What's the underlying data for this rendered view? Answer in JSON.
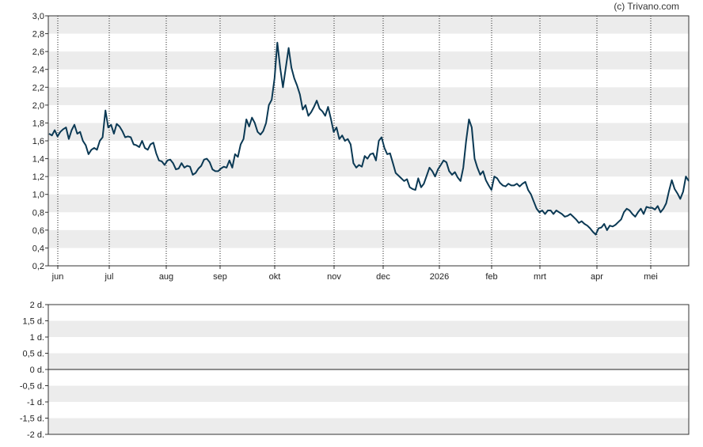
{
  "copyright": "(c) Trivano.com",
  "chart_data": [
    {
      "type": "line",
      "title": "",
      "xlabel": "",
      "ylabel": "",
      "ylim": [
        0.2,
        3.0
      ],
      "y_ticks": [
        "3,0",
        "2,8",
        "2,6",
        "2,4",
        "2,2",
        "2,0",
        "1,8",
        "1,6",
        "1,4",
        "1,2",
        "1,0",
        "0,8",
        "0,6",
        "0,4",
        "0,2"
      ],
      "x_ticks": [
        "jun",
        "jul",
        "aug",
        "sep",
        "okt",
        "nov",
        "dec",
        "2026",
        "feb",
        "mrt",
        "apr",
        "mei"
      ],
      "grid": "horizontal alternating bands, dotted vertical lines at month starts",
      "line_color": "#0b3954",
      "band_color": "#ececec",
      "series": [
        {
          "values": [
            1.68,
            1.66,
            1.72,
            1.65,
            1.7,
            1.73,
            1.75,
            1.62,
            1.72,
            1.78,
            1.68,
            1.7,
            1.6,
            1.55,
            1.45,
            1.5,
            1.52,
            1.5,
            1.6,
            1.64,
            1.94,
            1.75,
            1.78,
            1.68,
            1.79,
            1.76,
            1.71,
            1.64,
            1.65,
            1.64,
            1.56,
            1.55,
            1.53,
            1.6,
            1.52,
            1.5,
            1.56,
            1.58,
            1.46,
            1.38,
            1.37,
            1.33,
            1.38,
            1.39,
            1.35,
            1.28,
            1.29,
            1.35,
            1.3,
            1.32,
            1.31,
            1.22,
            1.24,
            1.29,
            1.32,
            1.39,
            1.4,
            1.36,
            1.28,
            1.26,
            1.26,
            1.29,
            1.31,
            1.3,
            1.38,
            1.3,
            1.45,
            1.42,
            1.56,
            1.62,
            1.84,
            1.76,
            1.86,
            1.8,
            1.7,
            1.67,
            1.71,
            1.8,
            2.0,
            2.06,
            2.3,
            2.7,
            2.42,
            2.2,
            2.42,
            2.64,
            2.42,
            2.3,
            2.22,
            2.12,
            1.95,
            2.0,
            1.88,
            1.92,
            1.98,
            2.05,
            1.96,
            1.93,
            1.88,
            1.98,
            1.85,
            1.7,
            1.75,
            1.62,
            1.66,
            1.6,
            1.62,
            1.56,
            1.35,
            1.3,
            1.33,
            1.31,
            1.43,
            1.4,
            1.45,
            1.46,
            1.38,
            1.6,
            1.64,
            1.52,
            1.45,
            1.46,
            1.35,
            1.24,
            1.21,
            1.18,
            1.15,
            1.17,
            1.08,
            1.06,
            1.05,
            1.18,
            1.08,
            1.12,
            1.21,
            1.3,
            1.26,
            1.2,
            1.28,
            1.33,
            1.38,
            1.36,
            1.26,
            1.22,
            1.25,
            1.19,
            1.15,
            1.3,
            1.6,
            1.84,
            1.75,
            1.4,
            1.3,
            1.22,
            1.26,
            1.16,
            1.1,
            1.05,
            1.2,
            1.18,
            1.13,
            1.1,
            1.09,
            1.12,
            1.1,
            1.1,
            1.12,
            1.09,
            1.12,
            1.14,
            1.05,
            1.0,
            0.92,
            0.84,
            0.8,
            0.82,
            0.78,
            0.82,
            0.82,
            0.78,
            0.82,
            0.8,
            0.78,
            0.75,
            0.76,
            0.78,
            0.75,
            0.72,
            0.68,
            0.7,
            0.67,
            0.65,
            0.62,
            0.58,
            0.55,
            0.62,
            0.63,
            0.67,
            0.6,
            0.65,
            0.64,
            0.66,
            0.69,
            0.72,
            0.8,
            0.84,
            0.82,
            0.78,
            0.75,
            0.8,
            0.84,
            0.78,
            0.86,
            0.85,
            0.85,
            0.83,
            0.87,
            0.8,
            0.84,
            0.9,
            1.04,
            1.16,
            1.06,
            1.01,
            0.95,
            1.03,
            1.2,
            1.15
          ]
        }
      ]
    },
    {
      "type": "line",
      "title": "",
      "ylim": [
        -2,
        2
      ],
      "y_ticks": [
        "2 d.",
        "1,5 d.",
        "1 d.",
        "0,5 d.",
        "0 d.",
        "-0,5 d.",
        "-1 d.",
        "-1,5 d.",
        "-2 d."
      ],
      "band_color": "#ececec",
      "zero_line": true,
      "series": []
    }
  ]
}
